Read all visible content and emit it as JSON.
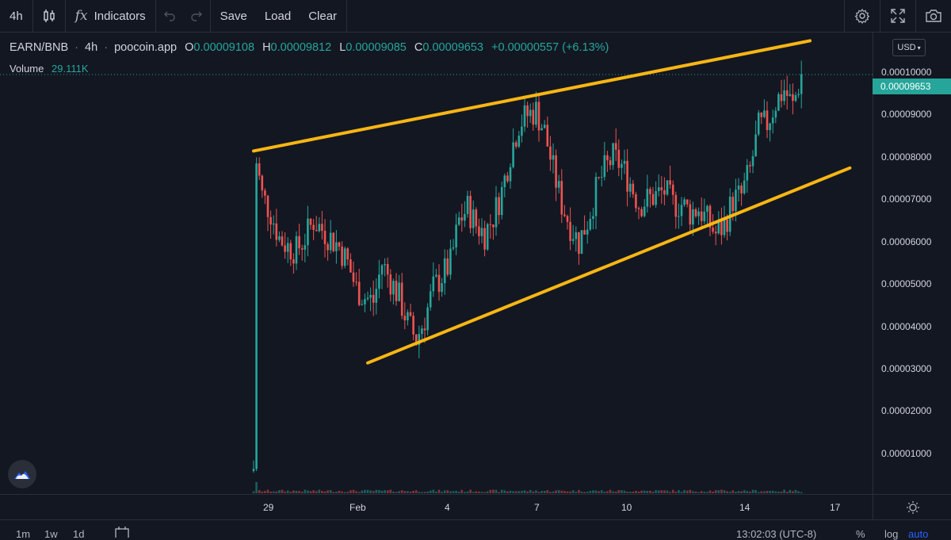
{
  "toolbar": {
    "interval": "4h",
    "indicators_label": "Indicators",
    "save_label": "Save",
    "load_label": "Load",
    "clear_label": "Clear"
  },
  "legend": {
    "symbol": "EARN/BNB",
    "interval": "4h",
    "source": "poocoin.app",
    "o_label": "O",
    "o_value": "0.00009108",
    "h_label": "H",
    "h_value": "0.00009812",
    "l_label": "L",
    "l_value": "0.00009085",
    "c_label": "C",
    "c_value": "0.00009653",
    "change": "+0.00000557 (+6.13%)",
    "volume_label": "Volume",
    "volume_value": "29.111K"
  },
  "price_axis": {
    "currency": "USD",
    "last_price": "0.00009653",
    "ticks": [
      "0.00010000",
      "0.00009000",
      "0.00008000",
      "0.00007000",
      "0.00006000",
      "0.00005000",
      "0.00004000",
      "0.00003000",
      "0.00002000",
      "0.00001000"
    ]
  },
  "time_axis": {
    "ticks": [
      "29",
      "Feb",
      "4",
      "7",
      "10",
      "14",
      "17"
    ]
  },
  "bottom": {
    "ranges": [
      "1m",
      "1w",
      "1d"
    ],
    "clock": "13:02:03 (UTC-8)",
    "percent": "%",
    "log": "log",
    "auto": "auto"
  },
  "colors": {
    "up": "#26a69a",
    "down": "#ef5350",
    "trendline": "#f9b613",
    "background": "#131722"
  },
  "chart_data": {
    "type": "candlestick",
    "title": "EARN/BNB · 4h · poocoin.app",
    "ylim": [
      0,
      0.000105
    ],
    "x_ticks": [
      "29",
      "Feb",
      "4",
      "7",
      "10",
      "14",
      "17"
    ],
    "y_ticks": [
      1e-05,
      2e-05,
      3e-05,
      4e-05,
      5e-05,
      6e-05,
      7e-05,
      8e-05,
      9e-05,
      0.0001
    ],
    "approx_close_path": [
      [
        0,
        3.5e-06
      ],
      [
        1,
        7.6e-05
      ],
      [
        3,
        6.8e-05
      ],
      [
        6,
        6.4e-05
      ],
      [
        9,
        5.8e-05
      ],
      [
        12,
        5.6e-05
      ],
      [
        15,
        5.5e-05
      ],
      [
        18,
        5.8e-05
      ],
      [
        21,
        6.2e-05
      ],
      [
        24,
        6e-05
      ],
      [
        27,
        5.8e-05
      ],
      [
        30,
        5.6e-05
      ],
      [
        33,
        5.2e-05
      ],
      [
        36,
        4.6e-05
      ],
      [
        39,
        4.4e-05
      ],
      [
        42,
        4.3e-05
      ],
      [
        45,
        5.2e-05
      ],
      [
        48,
        4.8e-05
      ],
      [
        51,
        4.4e-05
      ],
      [
        54,
        3.8e-05
      ],
      [
        57,
        3.4e-05
      ],
      [
        60,
        3.9e-05
      ],
      [
        63,
        4.6e-05
      ],
      [
        66,
        4.9e-05
      ],
      [
        69,
        5.2e-05
      ],
      [
        72,
        6.2e-05
      ],
      [
        75,
        6.5e-05
      ],
      [
        78,
        6.1e-05
      ],
      [
        81,
        5.9e-05
      ],
      [
        84,
        6.3e-05
      ],
      [
        87,
        6.9e-05
      ],
      [
        90,
        7.8e-05
      ],
      [
        93,
        8.5e-05
      ],
      [
        96,
        8.7e-05
      ],
      [
        99,
        8.8e-05
      ],
      [
        102,
        8.3e-05
      ],
      [
        105,
        7.4e-05
      ],
      [
        108,
        6.6e-05
      ],
      [
        111,
        6.1e-05
      ],
      [
        114,
        5.7e-05
      ],
      [
        117,
        6.2e-05
      ],
      [
        120,
        6.9e-05
      ],
      [
        123,
        7.4e-05
      ],
      [
        126,
        7.7e-05
      ],
      [
        129,
        7.5e-05
      ],
      [
        132,
        7.1e-05
      ],
      [
        135,
        6.6e-05
      ],
      [
        138,
        6.7e-05
      ],
      [
        141,
        6.8e-05
      ],
      [
        144,
        6.9e-05
      ],
      [
        147,
        6.6e-05
      ],
      [
        150,
        6.6e-05
      ],
      [
        153,
        6.4e-05
      ],
      [
        156,
        6.5e-05
      ],
      [
        159,
        6.2e-05
      ],
      [
        162,
        5.9e-05
      ],
      [
        165,
        6.1e-05
      ],
      [
        168,
        6.7e-05
      ],
      [
        171,
        6.8e-05
      ],
      [
        174,
        7.4e-05
      ],
      [
        177,
        8.4e-05
      ],
      [
        180,
        8.5e-05
      ],
      [
        183,
        9e-05
      ],
      [
        186,
        9.3e-05
      ],
      [
        189,
        8.9e-05
      ],
      [
        192,
        9.653e-05
      ]
    ],
    "trendlines": [
      {
        "name": "upper",
        "points": [
          [
            0,
            7.85e-05
          ],
          [
            195,
            0.0001045
          ]
        ]
      },
      {
        "name": "lower",
        "points": [
          [
            40,
            2.85e-05
          ],
          [
            209,
            7.45e-05
          ]
        ]
      }
    ]
  }
}
